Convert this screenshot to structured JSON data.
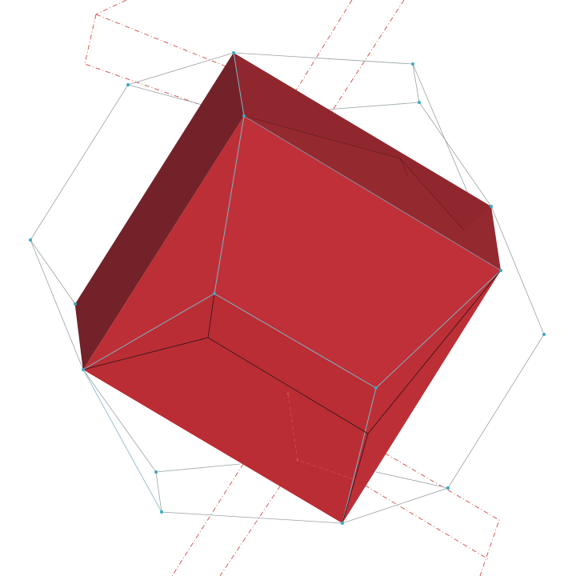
{
  "diagram": {
    "colors": {
      "background": "#ffffff",
      "face_front": "#bd2f36",
      "face_top": "#952930",
      "face_left": "#74222a",
      "edge_cyan": "#7fb3c4",
      "edge_dark": "#2a1416",
      "wire_gray": "#9aa3a8",
      "vertex": "#3aa9c2",
      "dash_red": "#d44a4a"
    },
    "vertex_icon": "vertex-dot-icon"
  }
}
